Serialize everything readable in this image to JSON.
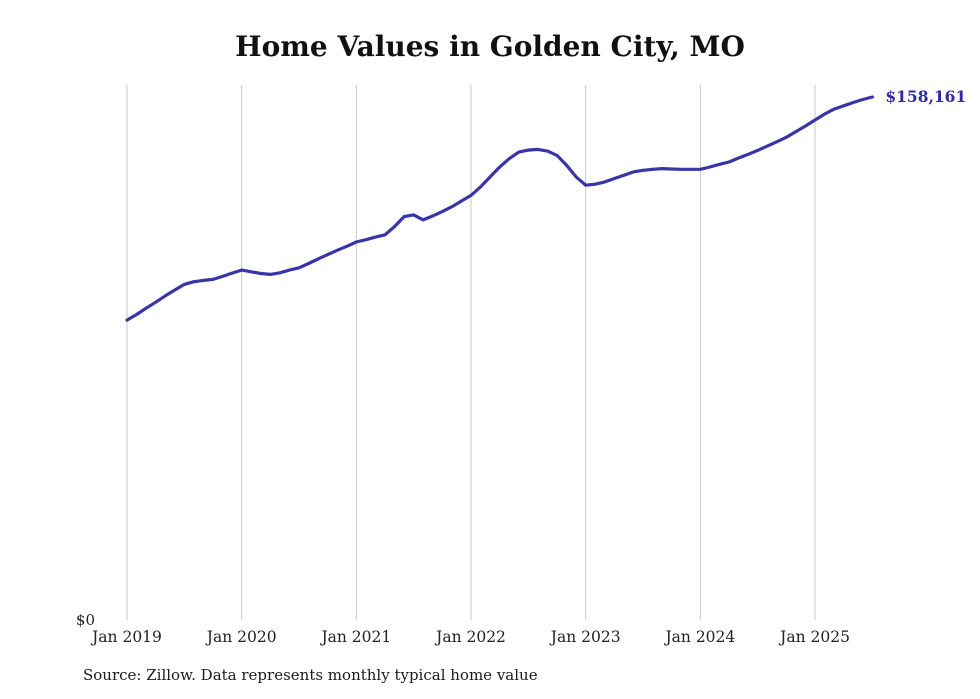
{
  "chart": {
    "title": "Home Values in Golden City, MO",
    "source_note": "Source: Zillow. Data represents monthly typical home value",
    "y_zero_label": "$0",
    "end_label": "$158,161"
  },
  "chart_data": {
    "type": "line",
    "title": "Home Values in Golden City, MO",
    "xlabel": "",
    "ylabel": "",
    "x_start": "2019-01",
    "x_end": "2025-07",
    "x_frequency": "monthly",
    "x_ticks": [
      "Jan 2019",
      "Jan 2020",
      "Jan 2021",
      "Jan 2022",
      "Jan 2023",
      "Jan 2024",
      "Jan 2025"
    ],
    "y_tick_labels": [
      "$0"
    ],
    "ylim": [
      0,
      165000
    ],
    "grid": "vertical-only",
    "legend": "none",
    "line_color": "#3835a8",
    "end_label_color": "#2e2ca0",
    "end_label": "$158,161",
    "series": [
      {
        "name": "Monthly typical home value",
        "values": [
          90700,
          92400,
          94300,
          96100,
          98000,
          99800,
          101500,
          102300,
          102700,
          103000,
          103900,
          104900,
          105800,
          105300,
          104800,
          104500,
          105000,
          105800,
          106500,
          107800,
          109200,
          110500,
          111800,
          113000,
          114300,
          115000,
          115800,
          116500,
          119000,
          122000,
          122500,
          121000,
          122200,
          123500,
          125000,
          126700,
          128400,
          131000,
          134000,
          137000,
          139500,
          141500,
          142100,
          142300,
          141800,
          140500,
          137500,
          134000,
          131500,
          131800,
          132500,
          133500,
          134500,
          135500,
          136000,
          136300,
          136500,
          136400,
          136300,
          136300,
          136300,
          137000,
          137800,
          138500,
          139700,
          140800,
          142000,
          143300,
          144600,
          146000,
          147700,
          149400,
          151200,
          153000,
          154500,
          155500,
          156500,
          157400,
          158161
        ]
      }
    ]
  }
}
